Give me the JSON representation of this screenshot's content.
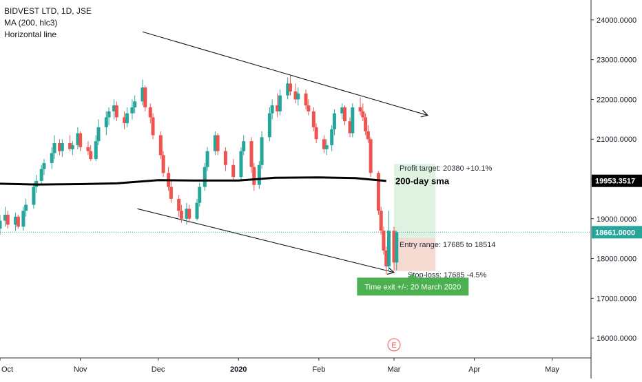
{
  "legend": {
    "title": "BIDVEST LTD, 1D, JSE",
    "indicator": "MA (200, hlc3)",
    "drawing": "Horizontal line"
  },
  "colors": {
    "up": "#26a69a",
    "down": "#ef5350",
    "ma": "#000000",
    "price_line": "#26a69a",
    "profit_zone": "#d9f0dc",
    "loss_zone": "#f3d6cc",
    "badge": "#4caf50"
  },
  "chart_data": {
    "type": "candlestick",
    "title": "BIDVEST LTD, 1D, JSE",
    "x_labels": [
      {
        "label": "Oct",
        "date": "2019-10-01"
      },
      {
        "label": "Nov",
        "date": "2019-11-01"
      },
      {
        "label": "Dec",
        "date": "2019-12-01"
      },
      {
        "label": "2020",
        "date": "2020-01-01"
      },
      {
        "label": "Feb",
        "date": "2020-02-01"
      },
      {
        "label": "Mar",
        "date": "2020-03-01"
      },
      {
        "label": "Apr",
        "date": "2020-04-01"
      },
      {
        "label": "May",
        "date": "2020-05-01"
      }
    ],
    "y_ticks": [
      "16000.0000",
      "17000.0000",
      "18000.0000",
      "19000.0000",
      "20000.0000",
      "21000.0000",
      "22000.0000",
      "23000.0000",
      "24000.0000"
    ],
    "ylim": [
      15500,
      24500
    ],
    "xlim": [
      "2019-10-01",
      "2020-05-16"
    ],
    "grid": false,
    "last_price": {
      "value": 18661,
      "label": "18661.0000"
    },
    "ma_value": {
      "value": 19953.3517,
      "label": "19953.3517"
    },
    "ma_line": [
      {
        "date": "2019-10-01",
        "value": 19880
      },
      {
        "date": "2019-10-15",
        "value": 19860
      },
      {
        "date": "2019-11-01",
        "value": 19870
      },
      {
        "date": "2019-11-15",
        "value": 19890
      },
      {
        "date": "2019-12-01",
        "value": 19970
      },
      {
        "date": "2019-12-15",
        "value": 19960
      },
      {
        "date": "2020-01-01",
        "value": 19960
      },
      {
        "date": "2020-01-15",
        "value": 20030
      },
      {
        "date": "2020-02-01",
        "value": 20040
      },
      {
        "date": "2020-02-15",
        "value": 20020
      },
      {
        "date": "2020-02-27",
        "value": 19950
      }
    ],
    "candles": [
      {
        "date": "2019-10-01",
        "open": 18750,
        "high": 19100,
        "low": 18600,
        "close": 18950
      },
      {
        "date": "2019-10-03",
        "open": 18950,
        "high": 19300,
        "low": 18800,
        "close": 19100
      },
      {
        "date": "2019-10-04",
        "open": 19100,
        "high": 19200,
        "low": 18750,
        "close": 18850
      },
      {
        "date": "2019-10-07",
        "open": 18850,
        "high": 19150,
        "low": 18700,
        "close": 19050
      },
      {
        "date": "2019-10-08",
        "open": 19050,
        "high": 19100,
        "low": 18750,
        "close": 18800
      },
      {
        "date": "2019-10-10",
        "open": 18800,
        "high": 19300,
        "low": 18700,
        "close": 19200
      },
      {
        "date": "2019-10-11",
        "open": 19200,
        "high": 19500,
        "low": 19050,
        "close": 19350
      },
      {
        "date": "2019-10-14",
        "open": 19350,
        "high": 19900,
        "low": 19250,
        "close": 19800
      },
      {
        "date": "2019-10-15",
        "open": 19800,
        "high": 20100,
        "low": 19650,
        "close": 19950
      },
      {
        "date": "2019-10-17",
        "open": 19950,
        "high": 20350,
        "low": 19850,
        "close": 20250
      },
      {
        "date": "2019-10-18",
        "open": 20250,
        "high": 20500,
        "low": 20100,
        "close": 20400
      },
      {
        "date": "2019-10-21",
        "open": 20400,
        "high": 20800,
        "low": 20250,
        "close": 20650
      },
      {
        "date": "2019-10-22",
        "open": 20650,
        "high": 21100,
        "low": 20500,
        "close": 20900
      },
      {
        "date": "2019-10-24",
        "open": 20900,
        "high": 21000,
        "low": 20600,
        "close": 20700
      },
      {
        "date": "2019-10-25",
        "open": 20700,
        "high": 21000,
        "low": 20550,
        "close": 20900
      },
      {
        "date": "2019-10-28",
        "open": 20900,
        "high": 21100,
        "low": 20700,
        "close": 20750
      },
      {
        "date": "2019-10-29",
        "open": 20750,
        "high": 20950,
        "low": 20600,
        "close": 20850
      },
      {
        "date": "2019-10-31",
        "open": 20850,
        "high": 21300,
        "low": 20750,
        "close": 21150
      },
      {
        "date": "2019-11-01",
        "open": 21150,
        "high": 21200,
        "low": 20700,
        "close": 20800
      },
      {
        "date": "2019-11-04",
        "open": 20800,
        "high": 20950,
        "low": 20600,
        "close": 20700
      },
      {
        "date": "2019-11-05",
        "open": 20700,
        "high": 20850,
        "low": 20450,
        "close": 20500
      },
      {
        "date": "2019-11-07",
        "open": 20500,
        "high": 21100,
        "low": 20450,
        "close": 20950
      },
      {
        "date": "2019-11-08",
        "open": 20950,
        "high": 21500,
        "low": 20850,
        "close": 21300
      },
      {
        "date": "2019-11-11",
        "open": 21300,
        "high": 21700,
        "low": 21100,
        "close": 21550
      },
      {
        "date": "2019-11-12",
        "open": 21550,
        "high": 21800,
        "low": 21350,
        "close": 21700
      },
      {
        "date": "2019-11-14",
        "open": 21700,
        "high": 22000,
        "low": 21500,
        "close": 21850
      },
      {
        "date": "2019-11-15",
        "open": 21850,
        "high": 21950,
        "low": 21450,
        "close": 21550
      },
      {
        "date": "2019-11-18",
        "open": 21550,
        "high": 21700,
        "low": 21250,
        "close": 21400
      },
      {
        "date": "2019-11-19",
        "open": 21400,
        "high": 21800,
        "low": 21300,
        "close": 21650
      },
      {
        "date": "2019-11-21",
        "open": 21650,
        "high": 22000,
        "low": 21500,
        "close": 21800
      },
      {
        "date": "2019-11-22",
        "open": 21800,
        "high": 22100,
        "low": 21650,
        "close": 21950
      },
      {
        "date": "2019-11-25",
        "open": 21950,
        "high": 22500,
        "low": 21850,
        "close": 22300
      },
      {
        "date": "2019-11-26",
        "open": 22300,
        "high": 22350,
        "low": 21700,
        "close": 21800
      },
      {
        "date": "2019-11-28",
        "open": 21800,
        "high": 21900,
        "low": 21400,
        "close": 21550
      },
      {
        "date": "2019-11-29",
        "open": 21550,
        "high": 21650,
        "low": 21000,
        "close": 21100
      },
      {
        "date": "2019-12-02",
        "open": 21100,
        "high": 21200,
        "low": 20500,
        "close": 20600
      },
      {
        "date": "2019-12-03",
        "open": 20600,
        "high": 20700,
        "low": 20050,
        "close": 20150
      },
      {
        "date": "2019-12-05",
        "open": 20150,
        "high": 20300,
        "low": 19700,
        "close": 19800
      },
      {
        "date": "2019-12-06",
        "open": 19800,
        "high": 19950,
        "low": 19400,
        "close": 19500
      },
      {
        "date": "2019-12-09",
        "open": 19500,
        "high": 19600,
        "low": 19050,
        "close": 19200
      },
      {
        "date": "2019-12-10",
        "open": 19200,
        "high": 19350,
        "low": 18900,
        "close": 19000
      },
      {
        "date": "2019-12-12",
        "open": 19000,
        "high": 19400,
        "low": 18850,
        "close": 19250
      },
      {
        "date": "2019-12-13",
        "open": 19250,
        "high": 19350,
        "low": 18900,
        "close": 19000
      },
      {
        "date": "2019-12-16",
        "open": 19000,
        "high": 19500,
        "low": 18950,
        "close": 19400
      },
      {
        "date": "2019-12-17",
        "open": 19400,
        "high": 19900,
        "low": 19300,
        "close": 19800
      },
      {
        "date": "2019-12-19",
        "open": 19800,
        "high": 20400,
        "low": 19700,
        "close": 20300
      },
      {
        "date": "2019-12-20",
        "open": 20300,
        "high": 20800,
        "low": 20200,
        "close": 20700
      },
      {
        "date": "2019-12-23",
        "open": 20700,
        "high": 21200,
        "low": 20600,
        "close": 21100
      },
      {
        "date": "2019-12-24",
        "open": 21100,
        "high": 21150,
        "low": 20600,
        "close": 20700
      },
      {
        "date": "2019-12-27",
        "open": 20700,
        "high": 20800,
        "low": 20200,
        "close": 20350
      },
      {
        "date": "2019-12-30",
        "open": 20350,
        "high": 20500,
        "low": 19950,
        "close": 20050
      },
      {
        "date": "2020-01-02",
        "open": 20050,
        "high": 20800,
        "low": 19950,
        "close": 20700
      },
      {
        "date": "2020-01-03",
        "open": 20700,
        "high": 21100,
        "low": 20600,
        "close": 20950
      },
      {
        "date": "2020-01-06",
        "open": 20950,
        "high": 21050,
        "low": 20150,
        "close": 20300
      },
      {
        "date": "2020-01-07",
        "open": 20300,
        "high": 20400,
        "low": 19700,
        "close": 19850
      },
      {
        "date": "2020-01-09",
        "open": 19850,
        "high": 20450,
        "low": 19750,
        "close": 20350
      },
      {
        "date": "2020-01-10",
        "open": 20350,
        "high": 21200,
        "low": 20250,
        "close": 21050
      },
      {
        "date": "2020-01-13",
        "open": 21050,
        "high": 21800,
        "low": 20950,
        "close": 21650
      },
      {
        "date": "2020-01-14",
        "open": 21650,
        "high": 22000,
        "low": 21500,
        "close": 21850
      },
      {
        "date": "2020-01-16",
        "open": 21850,
        "high": 22150,
        "low": 21550,
        "close": 21700
      },
      {
        "date": "2020-01-17",
        "open": 21700,
        "high": 22250,
        "low": 21600,
        "close": 22100
      },
      {
        "date": "2020-01-20",
        "open": 22100,
        "high": 22550,
        "low": 22000,
        "close": 22400
      },
      {
        "date": "2020-01-21",
        "open": 22400,
        "high": 22600,
        "low": 22100,
        "close": 22200
      },
      {
        "date": "2020-01-23",
        "open": 22200,
        "high": 22400,
        "low": 21900,
        "close": 22000
      },
      {
        "date": "2020-01-24",
        "open": 22000,
        "high": 22300,
        "low": 21850,
        "close": 22150
      },
      {
        "date": "2020-01-27",
        "open": 22150,
        "high": 22250,
        "low": 21750,
        "close": 21850
      },
      {
        "date": "2020-01-28",
        "open": 21850,
        "high": 22000,
        "low": 21600,
        "close": 21700
      },
      {
        "date": "2020-01-30",
        "open": 21700,
        "high": 21800,
        "low": 21200,
        "close": 21300
      },
      {
        "date": "2020-01-31",
        "open": 21300,
        "high": 21400,
        "low": 20900,
        "close": 21000
      },
      {
        "date": "2020-02-03",
        "open": 21000,
        "high": 21100,
        "low": 20650,
        "close": 20750
      },
      {
        "date": "2020-02-04",
        "open": 20750,
        "high": 21000,
        "low": 20600,
        "close": 20850
      },
      {
        "date": "2020-02-06",
        "open": 20850,
        "high": 21350,
        "low": 20700,
        "close": 21250
      },
      {
        "date": "2020-02-07",
        "open": 21250,
        "high": 21750,
        "low": 21100,
        "close": 21650
      },
      {
        "date": "2020-02-10",
        "open": 21650,
        "high": 21900,
        "low": 21500,
        "close": 21800
      },
      {
        "date": "2020-02-11",
        "open": 21800,
        "high": 21850,
        "low": 21350,
        "close": 21450
      },
      {
        "date": "2020-02-13",
        "open": 21450,
        "high": 21550,
        "low": 21050,
        "close": 21150
      },
      {
        "date": "2020-02-14",
        "open": 21150,
        "high": 21900,
        "low": 21050,
        "close": 21800
      },
      {
        "date": "2020-02-17",
        "open": 21800,
        "high": 22050,
        "low": 21600,
        "close": 21700
      },
      {
        "date": "2020-02-18",
        "open": 21700,
        "high": 21900,
        "low": 21450,
        "close": 21550
      },
      {
        "date": "2020-02-19",
        "open": 21550,
        "high": 21650,
        "low": 21100,
        "close": 21200
      },
      {
        "date": "2020-02-20",
        "open": 21200,
        "high": 21350,
        "low": 20900,
        "close": 21000
      },
      {
        "date": "2020-02-21",
        "open": 21000,
        "high": 21050,
        "low": 20050,
        "close": 20150
      },
      {
        "date": "2020-02-24",
        "open": 20150,
        "high": 20200,
        "low": 19100,
        "close": 19200
      },
      {
        "date": "2020-02-25",
        "open": 19200,
        "high": 19300,
        "low": 18600,
        "close": 18700
      },
      {
        "date": "2020-02-26",
        "open": 18700,
        "high": 18800,
        "low": 18100,
        "close": 18200
      },
      {
        "date": "2020-02-27",
        "open": 18200,
        "high": 18300,
        "low": 17600,
        "close": 17800
      },
      {
        "date": "2020-02-28",
        "open": 17800,
        "high": 19200,
        "low": 17700,
        "close": 18700
      },
      {
        "date": "2020-03-01",
        "open": 18700,
        "high": 18800,
        "low": 17700,
        "close": 17900
      },
      {
        "date": "2020-03-02",
        "open": 17900,
        "high": 18700,
        "low": 17700,
        "close": 18661
      }
    ],
    "trendlines": [
      {
        "start": {
          "date": "2019-11-25",
          "value": 23700
        },
        "end": {
          "date": "2020-03-14",
          "value": 21600
        },
        "arrow": true
      },
      {
        "start": {
          "date": "2019-11-23",
          "value": 19250
        },
        "end": {
          "date": "2020-03-01",
          "value": 17650
        },
        "arrow": true
      }
    ],
    "position": {
      "start": "2020-03-01",
      "end": "2020-03-17",
      "profit_target": 20380,
      "entry_high": 18514,
      "entry_low": 17685,
      "profit_label": "Profit target: 20380 +10.1%",
      "entry_label": "Entry range: 17685 to 18514",
      "stop_label": "Stop-loss: 17685 -4.5%"
    },
    "annotations": [
      {
        "text": "200-day sma",
        "date": "2020-03-01",
        "value": 19953.3517
      },
      {
        "text": "Time exit +/-: 20 March 2020",
        "date": "2020-03-08",
        "value": 17310
      }
    ],
    "event_marker": {
      "label": "E",
      "date": "2020-03-01"
    }
  }
}
